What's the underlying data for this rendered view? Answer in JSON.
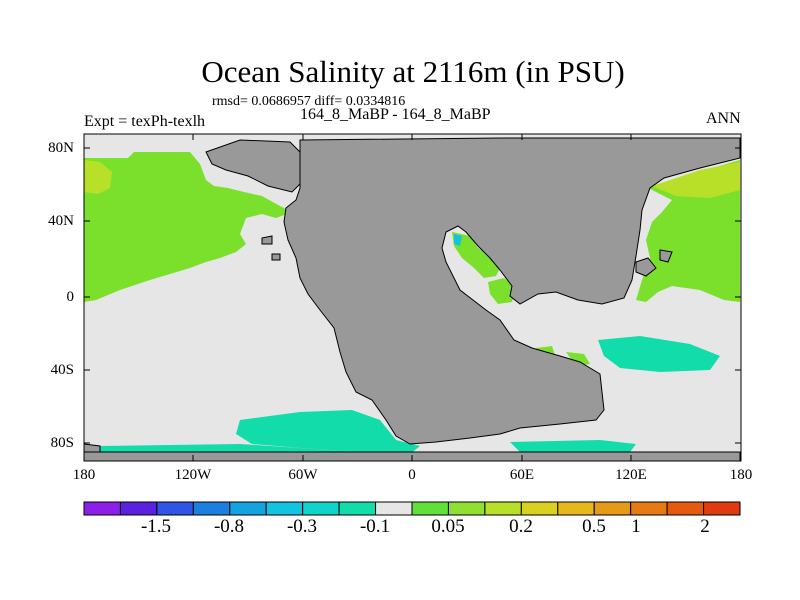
{
  "title": "Ocean Salinity at 2116m (in PSU)",
  "stats_line": "rmsd= 0.0686957 diff= 0.0334816",
  "subtitle": "164_8_MaBP - 164_8_MaBP",
  "expt_label": "Expt = texPh-texlh",
  "season": "ANN",
  "y_ticks": [
    "80N",
    "40N",
    "0",
    "40S",
    "80S"
  ],
  "x_ticks": [
    "180",
    "120W",
    "60W",
    "0",
    "60E",
    "120E",
    "180"
  ],
  "chart_data": {
    "type": "heatmap",
    "title": "Ocean Salinity at 2116m (in PSU)",
    "subtitle": "164_8_MaBP - 164_8_MaBP",
    "variable": "salinity difference",
    "units": "PSU",
    "longitude_range": [
      -180,
      180
    ],
    "latitude_range": [
      -90,
      90
    ],
    "colorbar": {
      "colors": [
        "#8c1fe8",
        "#5a22e0",
        "#2f55e6",
        "#1c7fe0",
        "#14a3e0",
        "#12c4e0",
        "#10d3c9",
        "#12dcaa",
        "#e6e6e6",
        "#5fe03a",
        "#8fe030",
        "#b9e028",
        "#d9d020",
        "#e6b81c",
        "#e69a18",
        "#e67a14",
        "#e65a10",
        "#e03a10"
      ],
      "tick_labels": [
        "-1.5",
        "-0.8",
        "-0.3",
        "-0.1",
        "0.05",
        "0.2",
        "0.5",
        "1",
        "2"
      ]
    },
    "land_color": "#999999",
    "ocean_near_zero_color": "#e6e6e6"
  }
}
